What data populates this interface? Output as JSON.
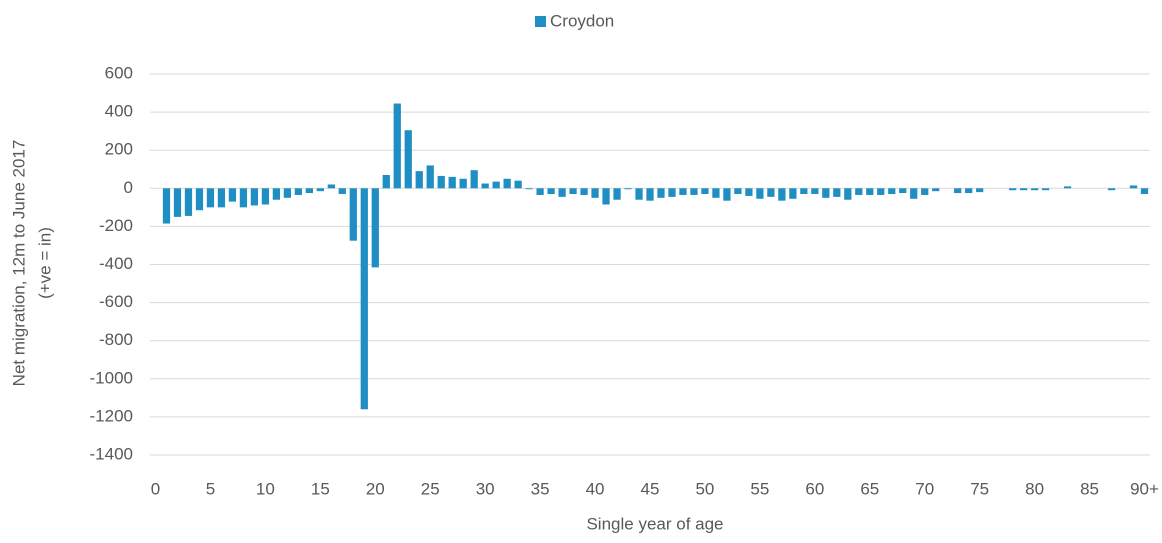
{
  "chart_data": {
    "type": "bar",
    "legend": "top",
    "xlabel": "Single year of age",
    "ylabel": [
      "Net migration, 12m to June 2017",
      "(+ve = in)"
    ],
    "grid": true,
    "categories": [
      "0",
      null,
      null,
      null,
      null,
      "5",
      null,
      null,
      null,
      null,
      "10",
      null,
      null,
      null,
      null,
      "15",
      null,
      null,
      null,
      null,
      "20",
      null,
      null,
      null,
      null,
      "25",
      null,
      null,
      null,
      null,
      "30",
      null,
      null,
      null,
      null,
      "35",
      null,
      null,
      null,
      null,
      "40",
      null,
      null,
      null,
      null,
      "45",
      null,
      null,
      null,
      null,
      "50",
      null,
      null,
      null,
      null,
      "55",
      null,
      null,
      null,
      null,
      "60",
      null,
      null,
      null,
      null,
      "65",
      null,
      null,
      null,
      null,
      "70",
      null,
      null,
      null,
      null,
      "75",
      null,
      null,
      null,
      null,
      "80",
      null,
      null,
      null,
      null,
      "85",
      null,
      null,
      null,
      null,
      "90+"
    ],
    "series": [
      {
        "name": "Croydon",
        "color": "#1f8ec2",
        "values": [
          0,
          -185,
          -150,
          -145,
          -115,
          -100,
          -100,
          -70,
          -100,
          -90,
          -85,
          -60,
          -50,
          -35,
          -25,
          -15,
          20,
          -30,
          -275,
          -1160,
          -415,
          70,
          445,
          305,
          90,
          120,
          65,
          60,
          50,
          95,
          25,
          35,
          50,
          40,
          -5,
          -35,
          -30,
          -45,
          -30,
          -35,
          -50,
          -85,
          -60,
          -5,
          -60,
          -65,
          -50,
          -45,
          -35,
          -35,
          -30,
          -50,
          -65,
          -30,
          -40,
          -55,
          -45,
          -65,
          -55,
          -30,
          -30,
          -50,
          -45,
          -60,
          -35,
          -35,
          -35,
          -30,
          -25,
          -55,
          -35,
          -15,
          0,
          -25,
          -25,
          -20,
          0,
          0,
          -10,
          -10,
          -10,
          -10,
          0,
          10,
          0,
          0,
          0,
          -10,
          0,
          15,
          -30
        ]
      }
    ],
    "ylim": [
      -1400,
      600
    ],
    "yticks": [
      -1400,
      -1200,
      -1000,
      -800,
      -600,
      -400,
      -200,
      0,
      200,
      400,
      600
    ]
  }
}
